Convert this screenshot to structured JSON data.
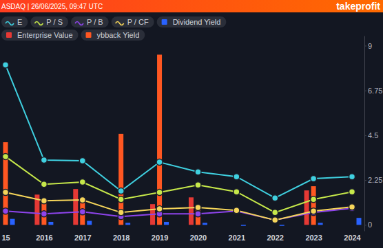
{
  "header": {
    "source": "ASDAQ | 26/06/2025, 09:47 UTC",
    "brand": "takeprofit"
  },
  "chart_data": {
    "type": "line",
    "categories": [
      "15",
      "2016",
      "2017",
      "2018",
      "2019",
      "2020",
      "2021",
      "2022",
      "2023",
      "2024"
    ],
    "series": [
      {
        "name": "E",
        "type": "line",
        "color": "#3fd0e0",
        "marker": "circle",
        "line_style": "solid",
        "values": [
          8.03,
          3.25,
          3.22,
          1.7,
          3.15,
          2.66,
          2.42,
          1.35,
          2.32,
          2.42
        ]
      },
      {
        "name": "P / S",
        "type": "line",
        "color": "#c6e84a",
        "marker": "circle",
        "line_style": "solid",
        "values": [
          3.43,
          2.04,
          2.15,
          1.28,
          1.63,
          2.0,
          1.66,
          0.62,
          1.28,
          1.66
        ]
      },
      {
        "name": "P / B",
        "type": "line",
        "color": "#8e44ec",
        "marker": "circle",
        "line_style": "solid",
        "values": [
          0.69,
          0.55,
          0.66,
          0.42,
          0.55,
          0.55,
          0.69,
          0.24,
          0.62,
          0.83
        ]
      },
      {
        "name": "P / CF",
        "type": "line",
        "color": "#f5d55a",
        "marker": "circle",
        "line_style": "solid",
        "values": [
          1.63,
          1.21,
          1.25,
          0.62,
          0.8,
          0.87,
          0.73,
          0.24,
          0.69,
          0.9
        ]
      },
      {
        "name": "Dividend Yield",
        "type": "bar",
        "color": "#2962ff",
        "values": [
          0.3,
          0.15,
          0.2,
          0.1,
          0.15,
          0.1,
          -0.05,
          -0.05,
          0.1,
          0.35
        ]
      },
      {
        "name": "Enterprise Value",
        "type": "bar",
        "color": "#e53935",
        "values": [
          null,
          1.52,
          1.8,
          null,
          1.04,
          1.38,
          null,
          null,
          1.73,
          null
        ]
      },
      {
        "name": "ybback Yield",
        "type": "bar",
        "color": "#ff5722",
        "values": [
          4.15,
          1.07,
          1.31,
          4.57,
          8.55,
          0.93,
          null,
          null,
          1.94,
          null
        ]
      }
    ],
    "ylim": [
      -0.3,
      9.5
    ],
    "yticks": [
      0,
      2.25,
      4.5,
      6.75,
      9
    ],
    "grid": false
  }
}
